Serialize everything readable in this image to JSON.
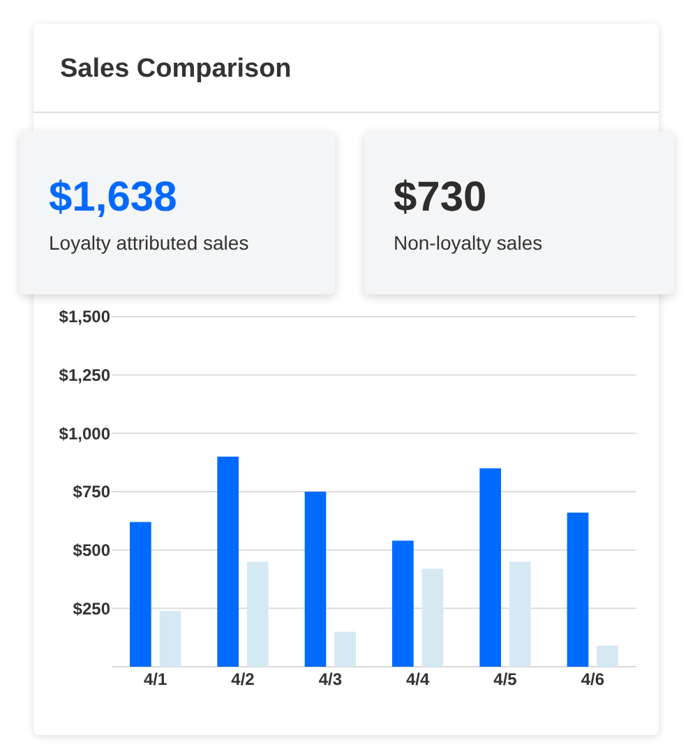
{
  "chart_data": {
    "type": "bar",
    "title": "Sales Comparison",
    "annotations": [
      "$1,638",
      "Loyalty attributed sales",
      "$730",
      "Non-loyalty sales"
    ],
    "categories": [
      "4/1",
      "4/2",
      "4/3",
      "4/4",
      "4/5",
      "4/6"
    ],
    "series": [
      {
        "color": "#006aff",
        "values": [
          620,
          900,
          750,
          540,
          850,
          660
        ]
      },
      {
        "color": "#d5e9f3",
        "values": [
          240,
          450,
          150,
          420,
          450,
          90
        ]
      }
    ],
    "ylim": [
      0,
      1500
    ],
    "yticks": [
      {
        "value": 250,
        "label": "$250"
      },
      {
        "value": 500,
        "label": "$500"
      },
      {
        "value": 750,
        "label": "$750"
      },
      {
        "value": 1000,
        "label": "$1,000"
      },
      {
        "value": 1250,
        "label": "$1,250"
      },
      {
        "value": 1500,
        "label": "$1,500"
      }
    ],
    "grid": "y"
  }
}
